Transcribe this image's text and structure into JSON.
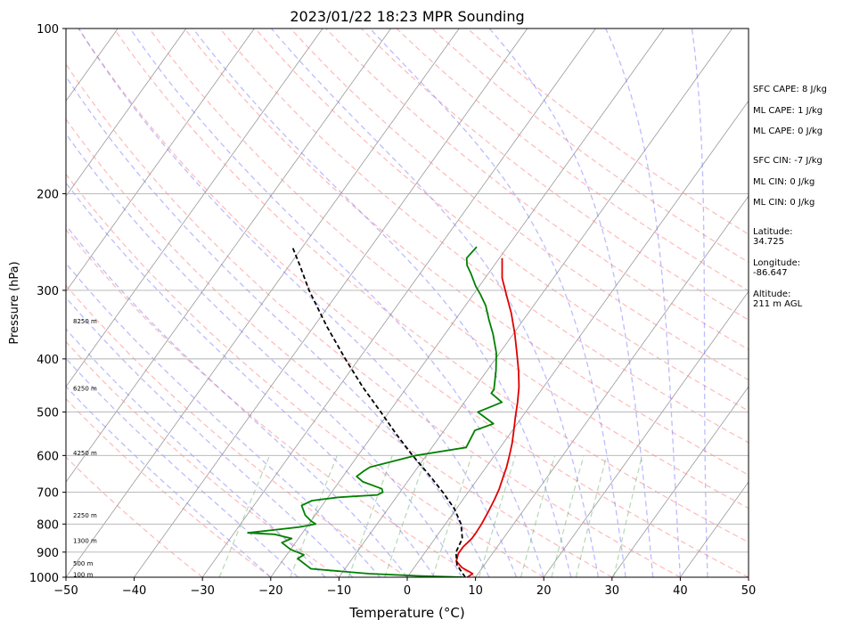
{
  "chart_data": {
    "type": "line",
    "title": "2023/01/22 18:23 MPR Sounding",
    "xlabel": "Temperature (°C)",
    "ylabel": "Pressure (hPa)",
    "xlim": [
      -50,
      50
    ],
    "ylim": [
      1000,
      100
    ],
    "y_scale": "log",
    "grid": true,
    "x_ticks": [
      "−50",
      "−40",
      "−30",
      "−20",
      "−10",
      "0",
      "10",
      "20",
      "30",
      "40",
      "50"
    ],
    "x_tick_values": [
      -50,
      -40,
      -30,
      -20,
      -10,
      0,
      10,
      20,
      30,
      40,
      50
    ],
    "y_ticks": [
      "100",
      "200",
      "300",
      "400",
      "500",
      "600",
      "700",
      "800",
      "900",
      "1000"
    ],
    "y_tick_values": [
      100,
      200,
      300,
      400,
      500,
      600,
      700,
      800,
      900,
      1000
    ],
    "height_labels": [
      {
        "text": "100 m",
        "p": 990
      },
      {
        "text": "500 m",
        "p": 945
      },
      {
        "text": "1300 m",
        "p": 860
      },
      {
        "text": "2250 m",
        "p": 772
      },
      {
        "text": "4250 m",
        "p": 595
      },
      {
        "text": "6250 m",
        "p": 454
      },
      {
        "text": "8250 m",
        "p": 342
      }
    ],
    "series": [
      {
        "color": "#e00000",
        "kind": "temperature",
        "points": [
          [
            1000,
            8.8
          ],
          [
            985,
            9.2
          ],
          [
            960,
            7.0
          ],
          [
            935,
            5.5
          ],
          [
            905,
            5.0
          ],
          [
            880,
            5.0
          ],
          [
            850,
            5.4
          ],
          [
            830,
            5.4
          ],
          [
            800,
            5.3
          ],
          [
            760,
            5.0
          ],
          [
            720,
            4.6
          ],
          [
            690,
            4.2
          ],
          [
            660,
            3.6
          ],
          [
            630,
            3.0
          ],
          [
            600,
            2.2
          ],
          [
            570,
            1.3
          ],
          [
            540,
            0.2
          ],
          [
            510,
            -1.0
          ],
          [
            480,
            -2.2
          ],
          [
            450,
            -3.6
          ],
          [
            420,
            -5.4
          ],
          [
            390,
            -7.5
          ],
          [
            360,
            -9.8
          ],
          [
            330,
            -12.5
          ],
          [
            305,
            -15.2
          ],
          [
            285,
            -17.5
          ],
          [
            262,
            -19.6
          ]
        ]
      },
      {
        "color": "#008000",
        "kind": "dewpoint",
        "points": [
          [
            1000,
            8.2
          ],
          [
            995,
            2.0
          ],
          [
            985,
            -6.0
          ],
          [
            965,
            -15.0
          ],
          [
            925,
            -18.0
          ],
          [
            910,
            -17.5
          ],
          [
            890,
            -20.0
          ],
          [
            865,
            -22.0
          ],
          [
            850,
            -21.0
          ],
          [
            835,
            -24.0
          ],
          [
            830,
            -28.0
          ],
          [
            810,
            -21.0
          ],
          [
            800,
            -19.0
          ],
          [
            790,
            -20.0
          ],
          [
            770,
            -21.5
          ],
          [
            740,
            -23.0
          ],
          [
            725,
            -22.0
          ],
          [
            715,
            -18.5
          ],
          [
            708,
            -13.0
          ],
          [
            700,
            -12.5
          ],
          [
            690,
            -13.0
          ],
          [
            670,
            -16.5
          ],
          [
            655,
            -18.0
          ],
          [
            640,
            -17.5
          ],
          [
            630,
            -17.0
          ],
          [
            600,
            -11.5
          ],
          [
            580,
            -5.0
          ],
          [
            540,
            -5.5
          ],
          [
            525,
            -3.5
          ],
          [
            500,
            -7.0
          ],
          [
            480,
            -4.5
          ],
          [
            462,
            -7.0
          ],
          [
            455,
            -7.0
          ],
          [
            420,
            -8.7
          ],
          [
            390,
            -10.5
          ],
          [
            360,
            -13.0
          ],
          [
            340,
            -15.0
          ],
          [
            320,
            -17.0
          ],
          [
            305,
            -19.0
          ],
          [
            295,
            -20.5
          ],
          [
            280,
            -22.5
          ],
          [
            270,
            -24.0
          ],
          [
            262,
            -24.8
          ],
          [
            250,
            -24.5
          ]
        ]
      },
      {
        "color": "#000000",
        "kind": "parcel",
        "dashed": true,
        "points": [
          [
            1000,
            8.5
          ],
          [
            950,
            6.0
          ],
          [
            900,
            4.5
          ],
          [
            850,
            4.0
          ],
          [
            800,
            2.3
          ],
          [
            750,
            -0.3
          ],
          [
            700,
            -3.7
          ],
          [
            650,
            -7.6
          ],
          [
            600,
            -12.0
          ],
          [
            550,
            -16.5
          ],
          [
            500,
            -21.2
          ],
          [
            450,
            -26.5
          ],
          [
            400,
            -32.0
          ],
          [
            350,
            -38.0
          ],
          [
            300,
            -44.5
          ],
          [
            270,
            -48.5
          ],
          [
            250,
            -51.5
          ]
        ]
      }
    ],
    "indices": [
      {
        "label": "SFC CAPE: 8 J/kg"
      },
      {
        "label": "ML CAPE: 1 J/kg"
      },
      {
        "label": "ML CAPE: 0 J/kg"
      },
      {
        "label": "SFC CIN: -7 J/kg"
      },
      {
        "label": "ML CIN: 0 J/kg"
      },
      {
        "label": "ML CIN: 0 J/kg"
      }
    ],
    "location": {
      "latitude_label": "Latitude:",
      "latitude_value": "34.725",
      "longitude_label": "Longitude:",
      "longitude_value": "-86.647",
      "altitude_label": "Altitude:",
      "altitude_value": "211 m AGL"
    }
  }
}
